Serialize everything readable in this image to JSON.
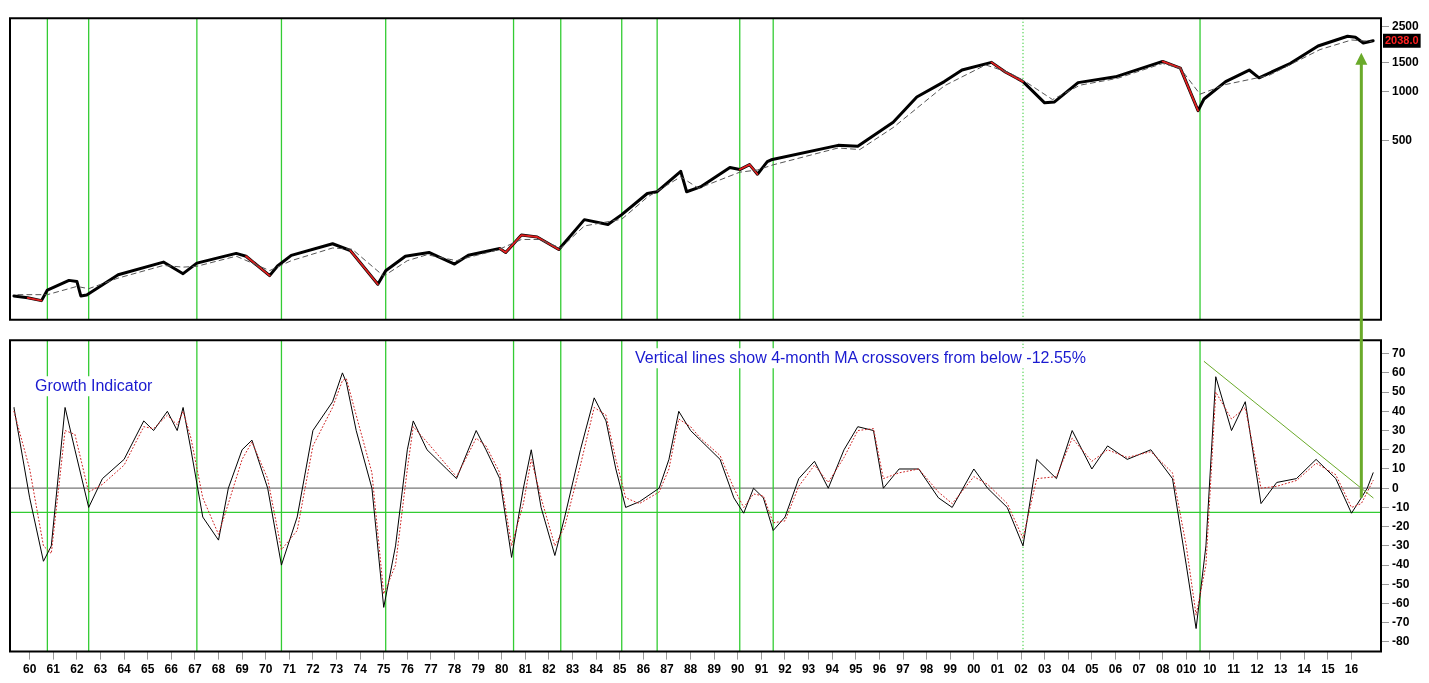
{
  "chart_data": [
    {
      "type": "line",
      "log": "y",
      "tick_labels": "y",
      "xlim": [
        "1959-09",
        "2017-10"
      ],
      "ylim": [
        40,
        2800
      ],
      "yticks": [
        500,
        1000,
        1500,
        2500
      ],
      "series": [
        {
          "color": "#000000",
          "x": [
            "1959-11",
            "1960-06",
            "1961-01",
            "1961-04",
            "1962-03",
            "1962-07",
            "1962-09",
            "1962-12",
            "1964-04",
            "1966-03",
            "1967-01",
            "1967-08",
            "1969-04",
            "1969-09",
            "1970-09",
            "1971-01",
            "1971-08",
            "1973-05",
            "1974-02",
            "1975-04",
            "1975-08",
            "1976-06",
            "1977-06",
            "1978-07",
            "1979-02",
            "1980-06",
            "1980-09",
            "1981-05",
            "1982-01",
            "1982-12",
            "1984-01",
            "1985-01",
            "1985-08",
            "1986-09",
            "1987-02",
            "1988-02",
            "1988-05",
            "1988-12",
            "1990-03",
            "1990-08",
            "1991-01",
            "1991-05",
            "1991-10",
            "1991-12",
            "1994-10",
            "1995-08",
            "1997-02",
            "1998-02",
            "1999-04",
            "2000-01",
            "2001-04",
            "2001-11",
            "2002-08",
            "2003-07",
            "2003-12",
            "2004-12",
            "2006-07",
            "2008-07",
            "2009-04",
            "2010-01",
            "2010-04",
            "2011-03",
            "2012-03",
            "2012-08",
            "2013-12",
            "2015-02",
            "2016-05",
            "2016-09",
            "2017-01",
            "2017-06"
          ],
          "values": [
            56,
            54.5,
            52.4,
            60.8,
            69.7,
            68.7,
            56,
            56.8,
            75.5,
            90.2,
            76.6,
            88.9,
            101.9,
            97.9,
            74.5,
            85.4,
            99.2,
            116.8,
            106.2,
            66,
            79.8,
            97.9,
            103.3,
            87.7,
            99.2,
            109.1,
            103.3,
            131.9,
            128.4,
            107.6,
            164,
            153,
            176,
            237,
            243,
            324,
            243,
            260,
            342,
            332,
            356,
            311,
            371,
            381,
            467,
            461,
            647,
            922,
            1146,
            1349,
            1503,
            1312,
            1146,
            850,
            861,
            1130,
            1226,
            1524,
            1386,
            762,
            897,
            1146,
            1349,
            1209,
            1483,
            1894,
            2170,
            2141,
            1974,
            2038
          ],
          "line_style": "solid"
        },
        {
          "color": "#e02020",
          "x": [
            "1960-06",
            "1961-01",
            "1961-04",
            "1969-09",
            "1970-09",
            "1971-01",
            "1974-02",
            "1975-04",
            "1975-08",
            "1980-06",
            "1980-09",
            "1981-05",
            "1982-01",
            "1982-12",
            "1984-01",
            "1990-08",
            "1991-01",
            "1991-05",
            "1991-10",
            "2001-04",
            "2001-11",
            "2002-08",
            "2003-07",
            "2008-07",
            "2009-04",
            "2010-01"
          ],
          "values": [
            54.5,
            52.4,
            null,
            97.9,
            74.5,
            null,
            106.2,
            66,
            null,
            109.1,
            103.3,
            131.9,
            128.4,
            107.6,
            null,
            332,
            356,
            311,
            null,
            1503,
            1312,
            1146,
            null,
            1524,
            1386,
            762
          ]
        },
        {
          "color": "#555555",
          "line_style": "dashed",
          "x": [
            "1960-01",
            "1961-04",
            "1962-07",
            "1963-01",
            "1964-04",
            "1966-03",
            "1967-01",
            "1967-08",
            "1969-04",
            "1970-09",
            "1971-08",
            "1973-05",
            "1974-03",
            "1975-07",
            "1976-07",
            "1977-05",
            "1978-08",
            "1979-03",
            "1980-05",
            "1981-05",
            "1982-02",
            "1983-01",
            "1984-01",
            "1985-08",
            "1986-09",
            "1988-02",
            "1988-11",
            "1990-08",
            "1991-05",
            "1992-01",
            "1994-10",
            "1995-09",
            "1997-02",
            "1999-04",
            "2001-01",
            "2002-01",
            "2002-09",
            "2003-11",
            "2005-01",
            "2006-08",
            "2008-07",
            "2009-04",
            "2010-02",
            "2011-03",
            "2013-01",
            "2015-03",
            "2016-07",
            "2017-05"
          ],
          "values": [
            57,
            57,
            64,
            62,
            72,
            86,
            84,
            85,
            98,
            80,
            92,
            110,
            108,
            74,
            92,
            100,
            92,
            97,
            107,
            124,
            124,
            110,
            150,
            165,
            225,
            300,
            255,
            320,
            330,
            355,
            450,
            440,
            600,
            1080,
            1450,
            1300,
            1150,
            890,
            1090,
            1200,
            1480,
            1380,
            960,
            1100,
            1250,
            1800,
            2060,
            2020
          ]
        }
      ],
      "ref_lines": [
        {
          "axis": "x",
          "value": "1961-04",
          "color": "#33cc33"
        },
        {
          "axis": "x",
          "value": "1963-01",
          "color": "#33cc33"
        },
        {
          "axis": "x",
          "value": "1967-08",
          "color": "#33cc33"
        },
        {
          "axis": "x",
          "value": "1971-03",
          "color": "#33cc33"
        },
        {
          "axis": "x",
          "value": "1975-08",
          "color": "#33cc33"
        },
        {
          "axis": "x",
          "value": "1981-01",
          "color": "#33cc33"
        },
        {
          "axis": "x",
          "value": "1983-01",
          "color": "#33cc33"
        },
        {
          "axis": "x",
          "value": "1985-08",
          "color": "#33cc33"
        },
        {
          "axis": "x",
          "value": "1987-02",
          "color": "#33cc33"
        },
        {
          "axis": "x",
          "value": "1990-08",
          "color": "#33cc33"
        },
        {
          "axis": "x",
          "value": "1992-01",
          "color": "#33cc33"
        },
        {
          "axis": "x",
          "value": "2002-08",
          "color": "#33cc33",
          "line_style": "dotted"
        },
        {
          "axis": "x",
          "value": "2010-02",
          "color": "#33cc33"
        }
      ],
      "annotations": [
        {
          "text": "2038.0",
          "y": 2038
        }
      ]
    },
    {
      "type": "line",
      "title": "Growth Indicator",
      "xlim": [
        "1959-09",
        "2017-10"
      ],
      "ylim": [
        -85,
        77
      ],
      "yticks": [
        -80,
        -70,
        -60,
        -50,
        -40,
        -30,
        -20,
        -10,
        0,
        10,
        20,
        30,
        40,
        50,
        60,
        70
      ],
      "xticks": [
        {
          "value": "1960-07",
          "label": "60"
        },
        {
          "value": "1961-07",
          "label": "61"
        },
        {
          "value": "1962-07",
          "label": "62"
        },
        {
          "value": "1963-07",
          "label": "63"
        },
        {
          "value": "1964-07",
          "label": "64"
        },
        {
          "value": "1965-07",
          "label": "65"
        },
        {
          "value": "1966-07",
          "label": "66"
        },
        {
          "value": "1967-07",
          "label": "67"
        },
        {
          "value": "1968-07",
          "label": "68"
        },
        {
          "value": "1969-07",
          "label": "69"
        },
        {
          "value": "1970-07",
          "label": "70"
        },
        {
          "value": "1971-07",
          "label": "71"
        },
        {
          "value": "1972-07",
          "label": "72"
        },
        {
          "value": "1973-07",
          "label": "73"
        },
        {
          "value": "1974-07",
          "label": "74"
        },
        {
          "value": "1975-07",
          "label": "75"
        },
        {
          "value": "1976-07",
          "label": "76"
        },
        {
          "value": "1977-07",
          "label": "77"
        },
        {
          "value": "1978-07",
          "label": "78"
        },
        {
          "value": "1979-07",
          "label": "79"
        },
        {
          "value": "1980-07",
          "label": "80"
        },
        {
          "value": "1981-07",
          "label": "81"
        },
        {
          "value": "1982-07",
          "label": "82"
        },
        {
          "value": "1983-07",
          "label": "83"
        },
        {
          "value": "1984-07",
          "label": "84"
        },
        {
          "value": "1985-07",
          "label": "85"
        },
        {
          "value": "1986-07",
          "label": "86"
        },
        {
          "value": "1987-07",
          "label": "87"
        },
        {
          "value": "1988-07",
          "label": "88"
        },
        {
          "value": "1989-07",
          "label": "89"
        },
        {
          "value": "1990-07",
          "label": "90"
        },
        {
          "value": "1991-07",
          "label": "91"
        },
        {
          "value": "1992-07",
          "label": "92"
        },
        {
          "value": "1993-07",
          "label": "93"
        },
        {
          "value": "1994-07",
          "label": "94"
        },
        {
          "value": "1995-07",
          "label": "95"
        },
        {
          "value": "1996-07",
          "label": "96"
        },
        {
          "value": "1997-07",
          "label": "97"
        },
        {
          "value": "1998-07",
          "label": "98"
        },
        {
          "value": "1999-07",
          "label": "99"
        },
        {
          "value": "2000-07",
          "label": "00"
        },
        {
          "value": "2001-07",
          "label": "01"
        },
        {
          "value": "2002-07",
          "label": "02"
        },
        {
          "value": "2003-07",
          "label": "03"
        },
        {
          "value": "2004-07",
          "label": "04"
        },
        {
          "value": "2005-07",
          "label": "05"
        },
        {
          "value": "2006-07",
          "label": "06"
        },
        {
          "value": "2007-07",
          "label": "07"
        },
        {
          "value": "2008-07",
          "label": "08"
        },
        {
          "value": "2009-07",
          "label": "010"
        },
        {
          "value": "2010-07",
          "label": "10"
        },
        {
          "value": "2011-07",
          "label": "11"
        },
        {
          "value": "2012-07",
          "label": "12"
        },
        {
          "value": "2013-07",
          "label": "13"
        },
        {
          "value": "2014-07",
          "label": "14"
        },
        {
          "value": "2015-07",
          "label": "15"
        },
        {
          "value": "2016-07",
          "label": "16"
        }
      ],
      "x": [
        "1959-11",
        "1960-07",
        "1961-02",
        "1961-06",
        "1962-01",
        "1962-06",
        "1963-01",
        "1963-08",
        "1964-07",
        "1965-05",
        "1965-10",
        "1966-05",
        "1966-10",
        "1967-01",
        "1967-05",
        "1967-11",
        "1968-07",
        "1968-12",
        "1969-07",
        "1969-12",
        "1970-08",
        "1971-03",
        "1971-11",
        "1972-07",
        "1973-05",
        "1973-10",
        "1973-12",
        "1974-05",
        "1975-01",
        "1975-07",
        "1976-01",
        "1976-07",
        "1976-10",
        "1977-05",
        "1978-03",
        "1978-08",
        "1979-06",
        "1979-11",
        "1980-06",
        "1980-12",
        "1981-06",
        "1981-10",
        "1982-03",
        "1982-10",
        "1983-03",
        "1983-11",
        "1984-06",
        "1984-12",
        "1985-05",
        "1985-10",
        "1986-05",
        "1987-03",
        "1987-08",
        "1988-01",
        "1988-07",
        "1988-12",
        "1989-10",
        "1990-05",
        "1990-10",
        "1991-03",
        "1991-08",
        "1992-01",
        "1992-07",
        "1993-02",
        "1993-10",
        "1994-05",
        "1995-01",
        "1995-08",
        "1996-04",
        "1996-09",
        "1997-05",
        "1998-03",
        "1999-01",
        "1999-08",
        "2000-07",
        "2001-02",
        "2001-12",
        "2002-08",
        "2003-03",
        "2004-01",
        "2004-09",
        "2005-07",
        "2006-03",
        "2007-01",
        "2008-01",
        "2008-12",
        "2009-07",
        "2009-12",
        "2010-05",
        "2010-10",
        "2011-06",
        "2012-01",
        "2012-09",
        "2013-05",
        "2014-03",
        "2015-01",
        "2015-11",
        "2016-07",
        "2016-12",
        "2017-03",
        "2017-06"
      ],
      "series": [
        {
          "color": "#000000",
          "values": [
            42,
            -5,
            -38,
            -30,
            42,
            20,
            -10,
            5,
            15,
            35,
            30,
            40,
            30,
            42,
            20,
            -15,
            -27,
            0,
            20,
            25,
            0,
            -40,
            -15,
            30,
            45,
            60,
            55,
            30,
            0,
            -62,
            -30,
            20,
            35,
            20,
            10,
            5,
            30,
            20,
            5,
            -36,
            0,
            20,
            -10,
            -35,
            -15,
            20,
            47,
            35,
            10,
            -10,
            -7,
            0,
            15,
            40,
            30,
            25,
            15,
            -5,
            -13,
            0,
            -5,
            -22,
            -15,
            5,
            14,
            0,
            20,
            32,
            30,
            0,
            10,
            10,
            -5,
            -10,
            10,
            0,
            -10,
            -30,
            15,
            5,
            30,
            10,
            22,
            15,
            20,
            5,
            -40,
            -73,
            -30,
            58,
            30,
            45,
            -8,
            3,
            5,
            15,
            5,
            -13,
            -5,
            0,
            8
          ]
        },
        {
          "color": "#cc2222",
          "line_style": "dotted",
          "values": [
            40,
            10,
            -30,
            -34,
            30,
            28,
            -2,
            2,
            12,
            32,
            31,
            38,
            33,
            40,
            26,
            -5,
            -24,
            -8,
            15,
            24,
            5,
            -32,
            -22,
            22,
            42,
            56,
            57,
            38,
            8,
            -55,
            -40,
            10,
            32,
            24,
            12,
            6,
            26,
            22,
            8,
            -30,
            -8,
            15,
            -5,
            -30,
            -20,
            12,
            42,
            38,
            15,
            -5,
            -8,
            -2,
            10,
            36,
            32,
            26,
            17,
            0,
            -10,
            -3,
            -4,
            -18,
            -17,
            1,
            12,
            3,
            16,
            30,
            31,
            5,
            8,
            10,
            -2,
            -8,
            6,
            2,
            -8,
            -26,
            5,
            6,
            26,
            14,
            20,
            16,
            19,
            8,
            -30,
            -66,
            -40,
            50,
            36,
            42,
            0,
            1,
            4,
            13,
            7,
            -10,
            -8,
            -2,
            4
          ]
        },
        {
          "color": "#6aaa2a",
          "x": [
            "2010-04",
            "2017-06"
          ],
          "values": [
            66,
            -5
          ]
        }
      ],
      "ref_lines": [
        {
          "axis": "y",
          "value": 0,
          "color": "#777777"
        },
        {
          "axis": "y",
          "value": -12.55,
          "color": "#33cc33"
        },
        {
          "axis": "x",
          "value": "1961-04",
          "color": "#33cc33"
        },
        {
          "axis": "x",
          "value": "1963-01",
          "color": "#33cc33"
        },
        {
          "axis": "x",
          "value": "1967-08",
          "color": "#33cc33"
        },
        {
          "axis": "x",
          "value": "1971-03",
          "color": "#33cc33"
        },
        {
          "axis": "x",
          "value": "1975-08",
          "color": "#33cc33"
        },
        {
          "axis": "x",
          "value": "1981-01",
          "color": "#33cc33"
        },
        {
          "axis": "x",
          "value": "1983-01",
          "color": "#33cc33"
        },
        {
          "axis": "x",
          "value": "1985-08",
          "color": "#33cc33"
        },
        {
          "axis": "x",
          "value": "1987-02",
          "color": "#33cc33"
        },
        {
          "axis": "x",
          "value": "1990-08",
          "color": "#33cc33"
        },
        {
          "axis": "x",
          "value": "1992-01",
          "color": "#33cc33"
        },
        {
          "axis": "x",
          "value": "2002-08",
          "color": "#33cc33",
          "line_style": "dotted"
        },
        {
          "axis": "x",
          "value": "2010-02",
          "color": "#33cc33"
        }
      ],
      "annotations": [
        "Vertical lines show 4-month MA crossovers from below -12.55%"
      ]
    }
  ]
}
